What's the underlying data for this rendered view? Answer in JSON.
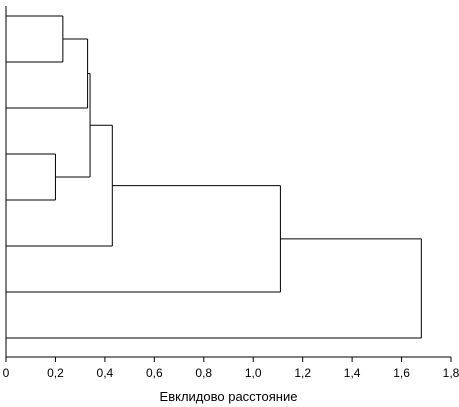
{
  "chart_data": {
    "type": "dendrogram",
    "orientation": "horizontal",
    "xlabel": "Евклидово расстояние",
    "xlim": [
      0,
      1.8
    ],
    "x_ticks": [
      0,
      0.2,
      0.4,
      0.6,
      0.8,
      1.0,
      1.2,
      1.4,
      1.6,
      1.8
    ],
    "x_tick_labels": [
      "0",
      "0,2",
      "0,4",
      "0,6",
      "0,8",
      "1,0",
      "1,2",
      "1,4",
      "1,6",
      "1,8"
    ],
    "leaf_count": 8,
    "merges": [
      {
        "id": "A",
        "left": "leaf:1",
        "right": "leaf:2",
        "height": 0.23
      },
      {
        "id": "B",
        "left": "leaf:4",
        "right": "leaf:5",
        "height": 0.2
      },
      {
        "id": "C",
        "left": "A",
        "right": "leaf:3",
        "height": 0.33
      },
      {
        "id": "D",
        "left": "C",
        "right": "B",
        "height": 0.34
      },
      {
        "id": "E",
        "left": "D",
        "right": "leaf:6",
        "height": 0.43
      },
      {
        "id": "F",
        "left": "E",
        "right": "leaf:7",
        "height": 1.11
      },
      {
        "id": "G",
        "left": "F",
        "right": "leaf:8",
        "height": 1.68
      }
    ]
  }
}
